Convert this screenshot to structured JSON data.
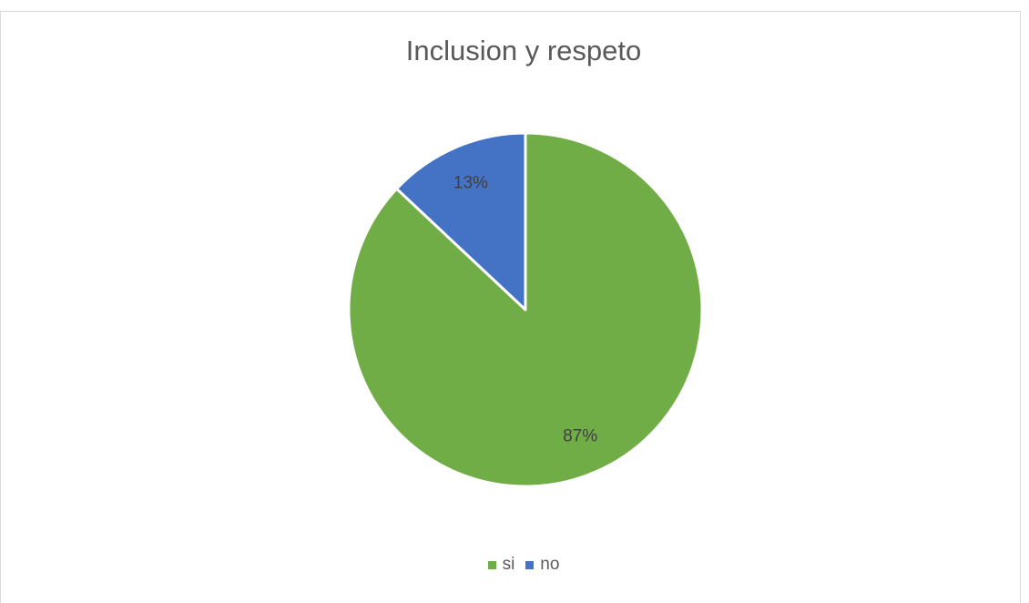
{
  "chart_data": {
    "type": "pie",
    "title": "Inclusion y respeto",
    "categories": [
      "si",
      "no"
    ],
    "values": [
      87,
      13
    ],
    "data_labels": [
      "87%",
      "13%"
    ],
    "colors": [
      "#70ad47",
      "#4472c4"
    ],
    "legend_position": "bottom"
  }
}
